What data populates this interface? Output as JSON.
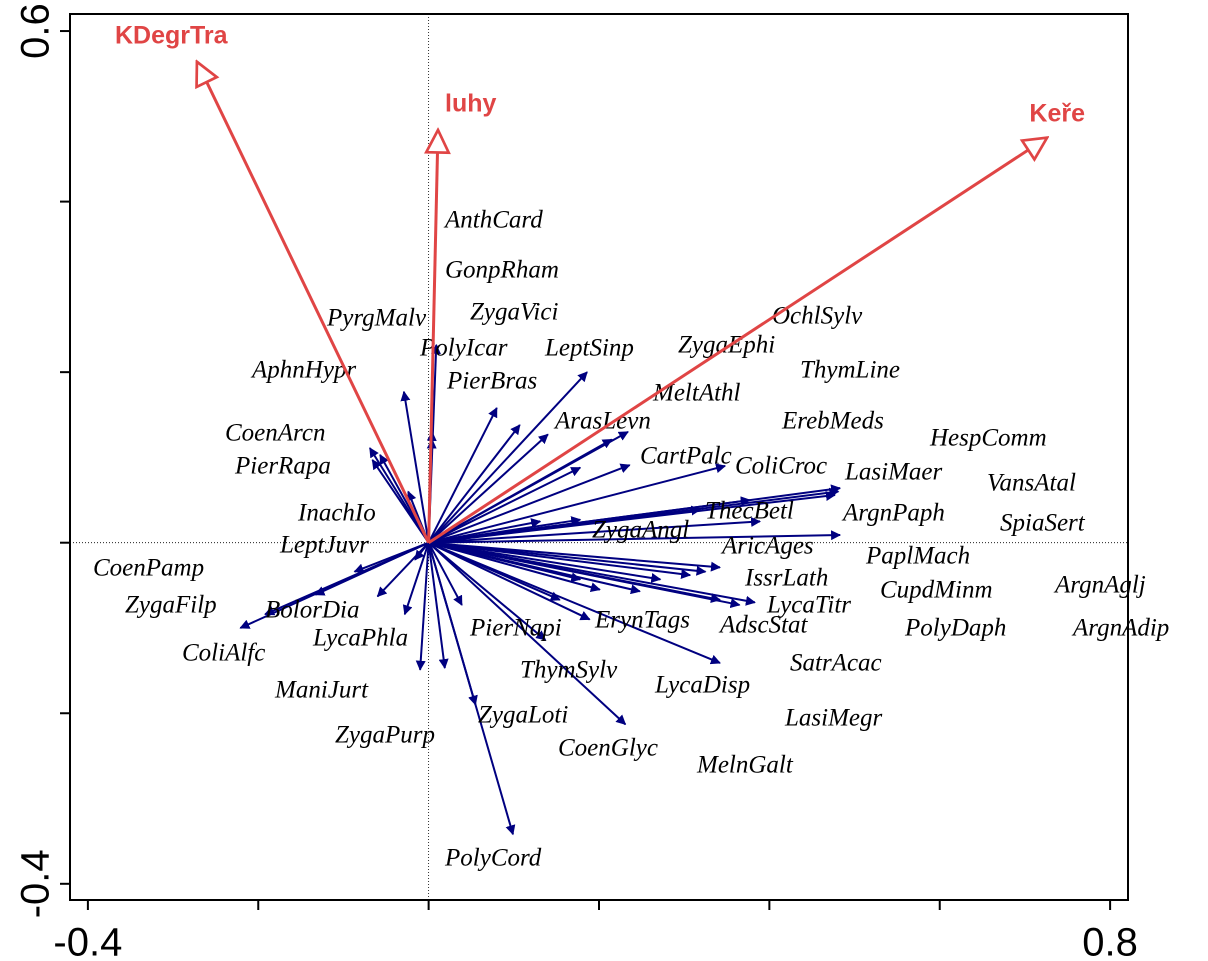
{
  "chart_data": {
    "type": "biplot",
    "xlim": [
      -0.421,
      0.821
    ],
    "ylim": [
      -0.419,
      0.62
    ],
    "xticks": [
      -0.4,
      0.8
    ],
    "xticks_minor": [
      -0.2,
      0,
      0.2,
      0.4,
      0.6
    ],
    "yticks": [
      -0.4,
      0.6
    ],
    "yticks_minor": [
      -0.2,
      0,
      0.2,
      0.4
    ],
    "species": {
      "color": "#000080",
      "labels": [
        "AnthCard",
        "GonpRham",
        "PyrgMalv",
        "ZygaVici",
        "PolyIcar",
        "LeptSinp",
        "ZygaEphi",
        "OchlSylv",
        "AphnHypr",
        "PierBras",
        "ThymLine",
        "MeltAthl",
        "ArasLevn",
        "ErebMeds",
        "HespComm",
        "CoenArcn",
        "CartPalc",
        "ColiCroc",
        "LasiMaer",
        "PierRapa",
        "VansAtal",
        "InachIo",
        "ThecBetl",
        "ArgnPaph",
        "SpiaSert",
        "ZygaAngl",
        "LeptJuvr",
        "AricAges",
        "PaplMach",
        "CoenPamp",
        "IssrLath",
        "CupdMinm",
        "ArgnAglj",
        "ZygaFilp",
        "BolorDia",
        "LycaTitr",
        "ErynTags",
        "AdscStat",
        "PierNapi",
        "PolyDaph",
        "ArgnAdip",
        "ColiAlfc",
        "LycaPhla",
        "SatrAcac",
        "ThymSylv",
        "LycaDisp",
        "ManiJurt",
        "ZygaLoti",
        "LasiMegr",
        "ZygaPurp",
        "CoenGlyc",
        "MelnGalt",
        "PolyCord"
      ],
      "x": [
        0.009,
        0.004,
        -0.029,
        0.08,
        0.004,
        0.186,
        0.234,
        0.348,
        -0.069,
        0.14,
        0.483,
        0.215,
        0.107,
        0.477,
        0.483,
        -0.066,
        0.178,
        0.236,
        0.481,
        -0.057,
        0.377,
        -0.024,
        0.178,
        0.319,
        0.389,
        0.131,
        -0.087,
        0.342,
        0.325,
        -0.133,
        0.383,
        0.342,
        0.307,
        -0.192,
        -0.06,
        0.365,
        0.201,
        0.248,
        0.039,
        0.272,
        0.178,
        -0.221,
        -0.01,
        0.189,
        0.137,
        0.342,
        -0.028,
        0.019,
        0.231,
        -0.016,
        0.055,
        0.154,
        0.099
      ],
      "y": [
        0.232,
        0.13,
        0.177,
        0.158,
        0.121,
        0.2,
        0.13,
        0.09,
        0.111,
        0.127,
        0.064,
        0.121,
        0.138,
        0.056,
        0.009,
        0.097,
        0.088,
        0.091,
        0.06,
        0.103,
        0.05,
        0.06,
        0.027,
        0.039,
        0.025,
        0.025,
        -0.034,
        -0.029,
        -0.034,
        -0.061,
        -0.07,
        -0.067,
        -0.038,
        -0.084,
        -0.063,
        -0.073,
        -0.055,
        -0.057,
        -0.073,
        -0.043,
        -0.043,
        -0.1,
        -0.149,
        -0.09,
        -0.114,
        -0.141,
        -0.084,
        -0.147,
        -0.213,
        -0.02,
        -0.19,
        -0.067,
        -0.342
      ]
    },
    "environment": {
      "color": "#e04545",
      "labels": [
        "KDegrTra",
        "luhy",
        "Keře"
      ],
      "x": [
        -0.272,
        0.011,
        0.726
      ],
      "y": [
        0.564,
        0.484,
        0.475
      ]
    }
  }
}
